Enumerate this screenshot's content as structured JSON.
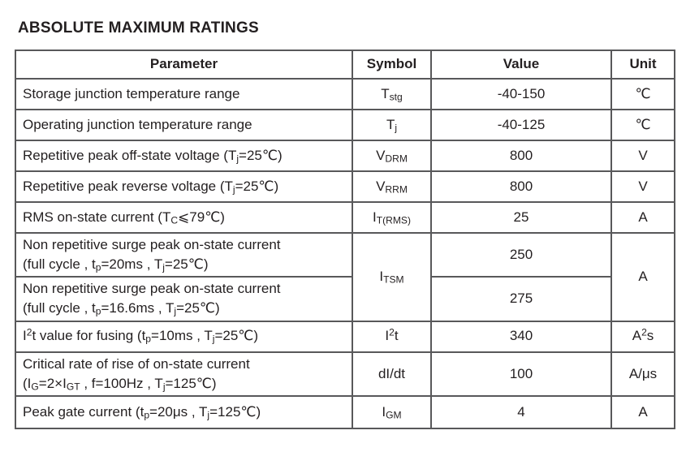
{
  "title": "ABSOLUTE MAXIMUM RATINGS",
  "colors": {
    "text": "#231f20",
    "border": "#58585a",
    "border_outer": "#3d3d3f",
    "background": "#ffffff"
  },
  "table": {
    "headers": [
      "Parameter",
      "Symbol",
      "Value",
      "Unit"
    ],
    "rows": [
      {
        "param": [
          {
            "t": "Storage junction temperature range"
          }
        ],
        "symbol": [
          {
            "t": "T"
          },
          {
            "sub": "stg"
          }
        ],
        "value": "-40-150",
        "unit": [
          {
            "t": "℃"
          }
        ]
      },
      {
        "param": [
          {
            "t": "Operating junction temperature range"
          }
        ],
        "symbol": [
          {
            "t": "T"
          },
          {
            "sub": "j"
          }
        ],
        "value": "-40-125",
        "unit": [
          {
            "t": "℃"
          }
        ]
      },
      {
        "param": [
          {
            "t": "Repetitive peak off-state voltage (T"
          },
          {
            "sub": "j"
          },
          {
            "t": "=25℃)"
          }
        ],
        "symbol": [
          {
            "t": "V"
          },
          {
            "sub": "DRM"
          }
        ],
        "value": "800",
        "unit": [
          {
            "t": "V"
          }
        ]
      },
      {
        "param": [
          {
            "t": "Repetitive peak reverse voltage (T"
          },
          {
            "sub": "j"
          },
          {
            "t": "=25℃)"
          }
        ],
        "symbol": [
          {
            "t": "V"
          },
          {
            "sub": "RRM"
          }
        ],
        "value": "800",
        "unit": [
          {
            "t": "V"
          }
        ]
      },
      {
        "param": [
          {
            "t": "RMS on-state current (T"
          },
          {
            "sub": "C"
          },
          {
            "t": "⩽79℃)"
          }
        ],
        "symbol": [
          {
            "t": "I"
          },
          {
            "sub": "T(RMS)"
          }
        ],
        "value": "25",
        "unit": [
          {
            "t": "A"
          }
        ]
      },
      {
        "param": [
          {
            "t": "Non repetitive surge peak on-state current"
          },
          {
            "br": true
          },
          {
            "t": "(full cycle , t"
          },
          {
            "sub": "p"
          },
          {
            "t": "=20ms , T"
          },
          {
            "sub": "j"
          },
          {
            "t": "=25℃)"
          }
        ],
        "symbol": [
          {
            "t": "I"
          },
          {
            "sub": "TSM"
          }
        ],
        "value": "250",
        "unit": [
          {
            "t": "A"
          }
        ]
      },
      {
        "param": [
          {
            "t": "Non repetitive surge peak on-state current"
          },
          {
            "br": true
          },
          {
            "t": "(full cycle , t"
          },
          {
            "sub": "p"
          },
          {
            "t": "=16.6ms , T"
          },
          {
            "sub": "j"
          },
          {
            "t": "=25℃)"
          }
        ],
        "symbol": null,
        "value": "275",
        "unit": null
      },
      {
        "param": [
          {
            "t": "I"
          },
          {
            "sup": "2"
          },
          {
            "t": "t value for fusing (t"
          },
          {
            "sub": "p"
          },
          {
            "t": "=10ms , T"
          },
          {
            "sub": "j"
          },
          {
            "t": "=25℃)"
          }
        ],
        "symbol": [
          {
            "t": "I"
          },
          {
            "sup": "2"
          },
          {
            "t": "t"
          }
        ],
        "value": "340",
        "unit": [
          {
            "t": "A"
          },
          {
            "sup": "2"
          },
          {
            "t": "s"
          }
        ]
      },
      {
        "param": [
          {
            "t": "Critical rate of rise of on-state current"
          },
          {
            "br": true
          },
          {
            "t": "(I"
          },
          {
            "sub": "G"
          },
          {
            "t": "=2×I"
          },
          {
            "sub": "GT"
          },
          {
            "t": " , f=100Hz , T"
          },
          {
            "sub": "j"
          },
          {
            "t": "=125℃)"
          }
        ],
        "symbol": [
          {
            "t": "dI/dt"
          }
        ],
        "value": "100",
        "unit": [
          {
            "t": "A/μs"
          }
        ]
      },
      {
        "param": [
          {
            "t": "Peak gate current (t"
          },
          {
            "sub": "p"
          },
          {
            "t": "=20μs , T"
          },
          {
            "sub": "j"
          },
          {
            "t": "=125℃)"
          }
        ],
        "symbol": [
          {
            "t": "I"
          },
          {
            "sub": "GM"
          }
        ],
        "value": "4",
        "unit": [
          {
            "t": "A"
          }
        ]
      }
    ]
  }
}
